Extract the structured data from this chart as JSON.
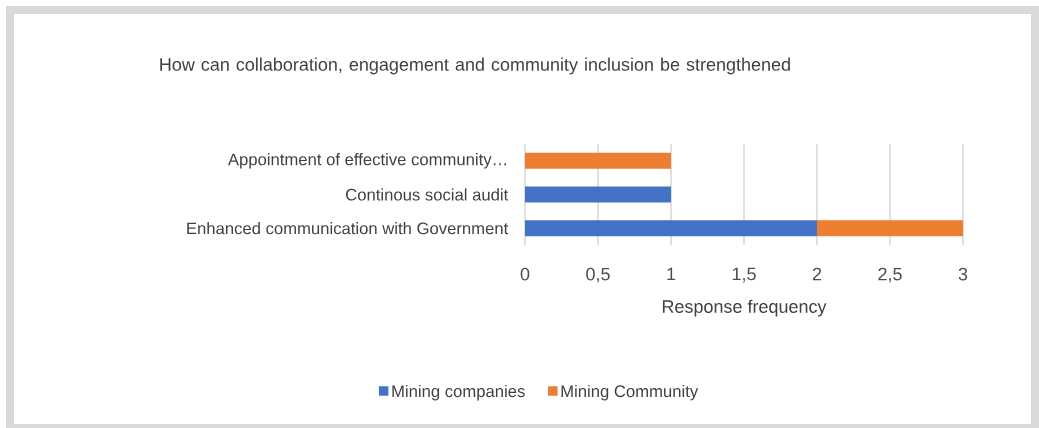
{
  "chart_data": {
    "type": "bar",
    "orientation": "horizontal",
    "stacked": true,
    "title": "How can collaboration, engagement and community inclusion be strengthened",
    "xlabel": "Response frequency",
    "categories": [
      "Appointment of effective community…",
      "Continous social audit",
      "Enhanced communication with Government"
    ],
    "series": [
      {
        "name": "Mining companies",
        "color": "#4472c4",
        "values": [
          0,
          1,
          2
        ]
      },
      {
        "name": "Mining Community",
        "color": "#ed7d31",
        "values": [
          1,
          0,
          1
        ]
      }
    ],
    "xlim": [
      0,
      3
    ],
    "xticks": [
      0,
      {
        "value": 0.5,
        "label": "0,5"
      },
      1,
      {
        "value": 1.5,
        "label": "1,5"
      },
      2,
      {
        "value": 2.5,
        "label": "2,5"
      },
      3
    ],
    "grid": "x",
    "legend": "bottom"
  }
}
